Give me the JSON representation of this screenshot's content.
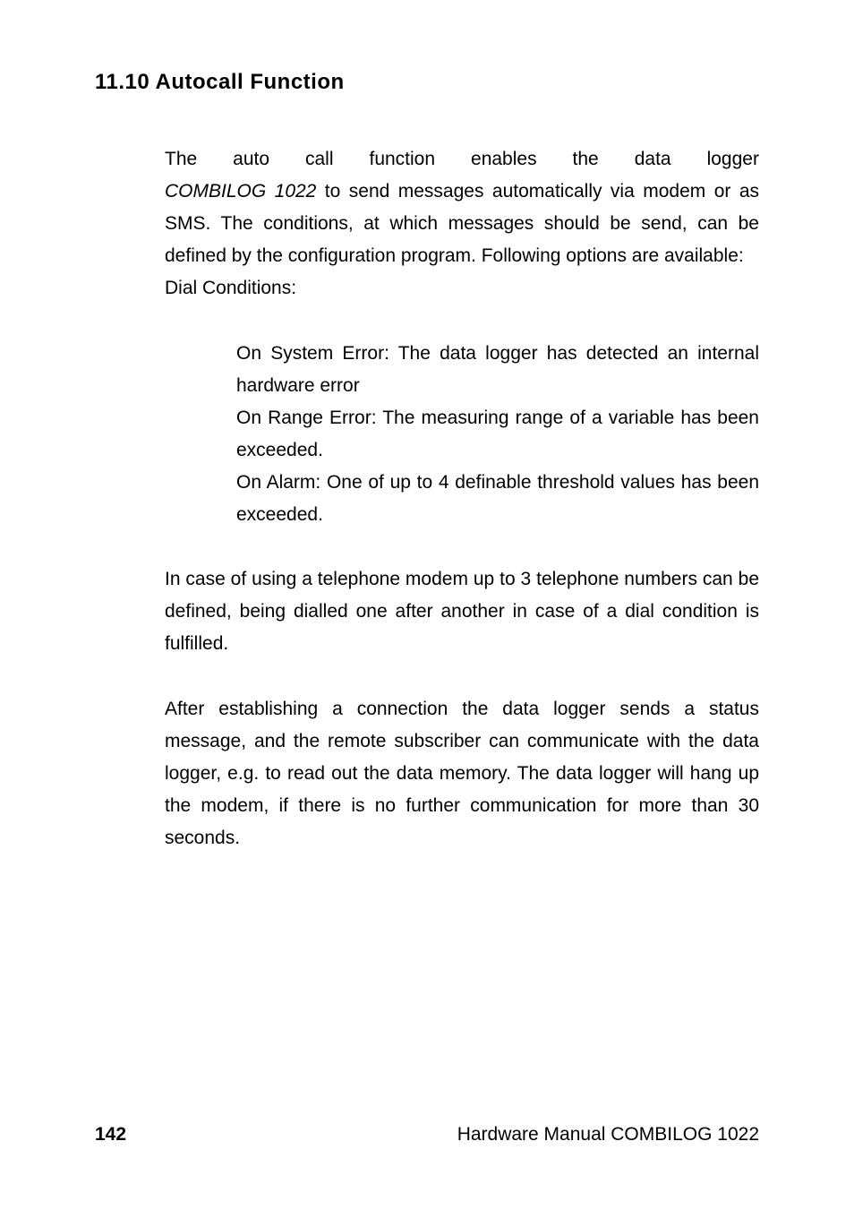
{
  "heading": "11.10  Autocall Function",
  "intro": {
    "line1_words": [
      "The",
      "auto",
      "call",
      "function",
      "enables",
      "the",
      "data",
      "logger"
    ],
    "device_name": "COMBILOG 1022",
    "rest": " to send messages automatically via modem or as SMS. The conditions, at which messages should be send, can be defined by the configuration program. Following options are available:"
  },
  "dial_label": "Dial Conditions:",
  "bullets": [
    "On System Error: The data logger has detected an internal hardware error",
    "On Range Error: The measuring range of a variable has been exceeded.",
    "On Alarm: One of up to 4 definable threshold values has been exceeded."
  ],
  "para2": "In case of using a telephone modem up to 3 telephone numbers can be defined, being dialled one after another in case of a dial condition is fulfilled.",
  "para3": "After establishing a connection the data logger sends a status message, and the remote subscriber can communicate with the data logger, e.g. to read out the data memory. The data logger will hang up the modem, if there is no further communication for more than 30 seconds.",
  "footer": {
    "page": "142",
    "title": "Hardware Manual COMBILOG 1022"
  }
}
